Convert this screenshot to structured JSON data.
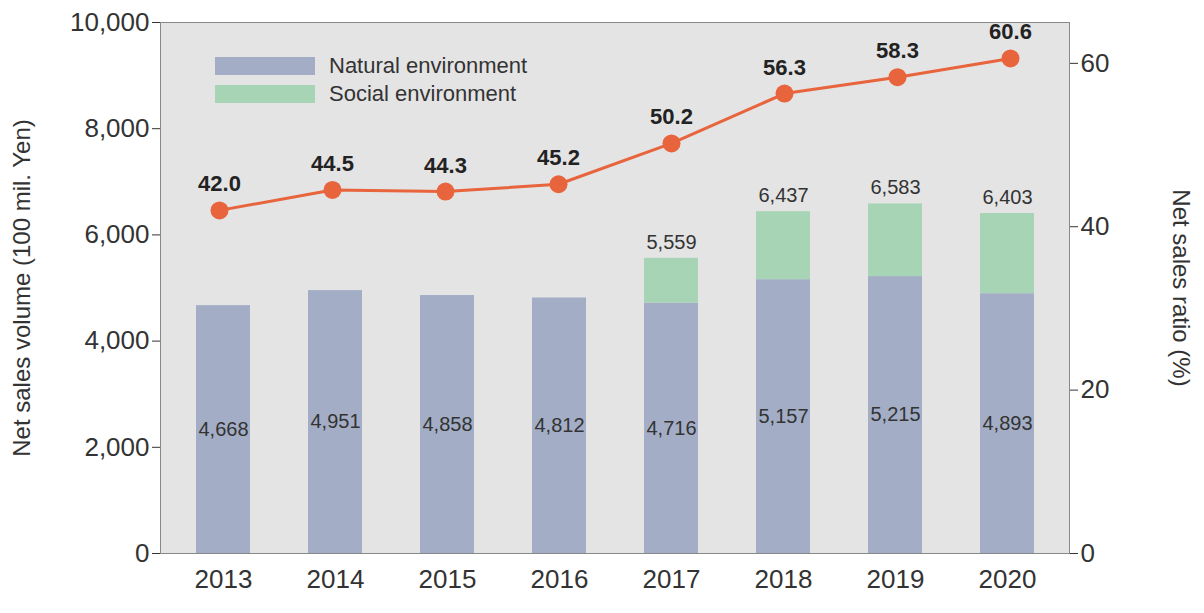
{
  "chart_data": {
    "type": "bar",
    "stacked": true,
    "categories": [
      "2013",
      "2014",
      "2015",
      "2016",
      "2017",
      "2018",
      "2019",
      "2020"
    ],
    "series": [
      {
        "name": "Natural environment",
        "color": "#a3aec6",
        "values": [
          4668,
          4951,
          4858,
          4812,
          4716,
          5157,
          5215,
          4893
        ],
        "value_labels": [
          "4,668",
          "4,951",
          "4,858",
          "4,812",
          "4,716",
          "5,157",
          "5,215",
          "4,893"
        ],
        "data_labels": true
      },
      {
        "name": "Social environment",
        "color": "#a6d4b4",
        "values": [
          null,
          null,
          null,
          null,
          843,
          1280,
          1368,
          1510
        ]
      },
      {
        "type": "line",
        "axis": "y2",
        "color": "#e8643c",
        "marker": "circle",
        "values": [
          42.0,
          44.5,
          44.3,
          45.2,
          50.2,
          56.3,
          58.3,
          60.6
        ],
        "value_labels": [
          "42.0",
          "44.5",
          "44.3",
          "45.2",
          "50.2",
          "56.3",
          "58.3",
          "60.6"
        ],
        "data_labels": true
      }
    ],
    "totals": [
      null,
      null,
      null,
      null,
      5559,
      6437,
      6583,
      6403
    ],
    "total_labels": [
      null,
      null,
      null,
      null,
      "5,559",
      "6,437",
      "6,583",
      "6,403"
    ],
    "ylabel": "Net sales volume (100 mil. Yen)",
    "y2label": "Net sales ratio (%)",
    "ylim": [
      0,
      10000
    ],
    "yticks": [
      0,
      {
        "value": 2000,
        "label": "2,000"
      },
      {
        "value": 4000,
        "label": "4,000"
      },
      {
        "value": 6000,
        "label": "6,000"
      },
      {
        "value": 8000,
        "label": "8,000"
      },
      {
        "value": 10000,
        "label": "10,000"
      }
    ],
    "y2lim": [
      0,
      65
    ],
    "y2ticks": [
      0,
      20,
      40,
      60
    ],
    "legend": "top-left",
    "grid": false
  }
}
